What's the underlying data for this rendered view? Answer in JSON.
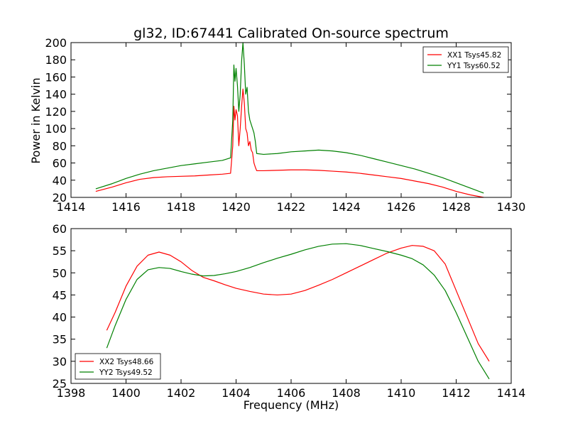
{
  "chart_data": [
    {
      "type": "line",
      "title": "gl32, ID:67441 Calibrated On-source spectrum",
      "xlabel": "",
      "ylabel": "Power in Kelvin",
      "xlim": [
        1414,
        1430
      ],
      "ylim": [
        20,
        200
      ],
      "xticks": [
        1414,
        1416,
        1418,
        1420,
        1422,
        1424,
        1426,
        1428,
        1430
      ],
      "yticks": [
        20,
        40,
        60,
        80,
        100,
        120,
        140,
        160,
        180,
        200
      ],
      "grid": false,
      "legend_position": "top-right",
      "series": [
        {
          "name": "XX1 Tsys45.82",
          "color": "#ff0000",
          "x": [
            1414.9,
            1415.5,
            1416.0,
            1416.5,
            1417.0,
            1417.5,
            1418.0,
            1418.5,
            1419.0,
            1419.5,
            1419.8,
            1419.88,
            1419.92,
            1419.96,
            1420.0,
            1420.05,
            1420.1,
            1420.15,
            1420.2,
            1420.25,
            1420.3,
            1420.35,
            1420.4,
            1420.45,
            1420.5,
            1420.55,
            1420.6,
            1420.65,
            1420.7,
            1420.75,
            1421.0,
            1421.5,
            1422.0,
            1422.5,
            1423.0,
            1423.5,
            1424.0,
            1424.5,
            1425.0,
            1425.5,
            1426.0,
            1426.5,
            1427.0,
            1427.5,
            1428.0,
            1428.5,
            1429.0
          ],
          "y": [
            27,
            32,
            37,
            41,
            43,
            44,
            44.5,
            45,
            46,
            47,
            48,
            80,
            126,
            110,
            122,
            115,
            80,
            100,
            125,
            146,
            130,
            100,
            95,
            80,
            85,
            75,
            72,
            60,
            55,
            51,
            51,
            51.5,
            52,
            52,
            51.5,
            50.5,
            49.5,
            48,
            46,
            44,
            42,
            39,
            36,
            32,
            27,
            23,
            20
          ]
        },
        {
          "name": "YY1 Tsys60.52",
          "color": "#008000",
          "x": [
            1414.9,
            1415.5,
            1416.0,
            1416.5,
            1417.0,
            1417.5,
            1418.0,
            1418.5,
            1419.0,
            1419.5,
            1419.8,
            1419.88,
            1419.92,
            1419.96,
            1420.0,
            1420.05,
            1420.1,
            1420.15,
            1420.2,
            1420.25,
            1420.3,
            1420.35,
            1420.4,
            1420.45,
            1420.5,
            1420.55,
            1420.6,
            1420.65,
            1420.7,
            1420.75,
            1421.0,
            1421.5,
            1422.0,
            1422.5,
            1423.0,
            1423.5,
            1424.0,
            1424.5,
            1425.0,
            1425.5,
            1426.0,
            1426.5,
            1427.0,
            1427.5,
            1428.0,
            1428.5,
            1429.0
          ],
          "y": [
            30,
            36,
            42,
            47,
            51,
            54,
            57,
            59,
            61,
            63,
            66,
            110,
            174,
            155,
            170,
            150,
            120,
            140,
            178,
            200,
            175,
            140,
            148,
            120,
            110,
            105,
            100,
            95,
            85,
            71,
            70,
            71,
            73,
            74,
            75,
            74,
            72,
            69,
            65,
            61,
            57,
            53,
            48,
            43,
            37,
            31,
            25
          ]
        }
      ]
    },
    {
      "type": "line",
      "title": "",
      "xlabel": "Frequency (MHz)",
      "ylabel": "",
      "xlim": [
        1398,
        1414
      ],
      "ylim": [
        25,
        60
      ],
      "xticks": [
        1398,
        1400,
        1402,
        1404,
        1406,
        1408,
        1410,
        1412,
        1414
      ],
      "yticks": [
        25,
        30,
        35,
        40,
        45,
        50,
        55,
        60
      ],
      "grid": false,
      "legend_position": "bottom-left",
      "series": [
        {
          "name": "XX2 Tsys48.66",
          "color": "#ff0000",
          "x": [
            1399.3,
            1399.6,
            1400.0,
            1400.4,
            1400.8,
            1401.2,
            1401.6,
            1402.0,
            1402.4,
            1402.8,
            1403.2,
            1403.6,
            1404.0,
            1404.5,
            1405.0,
            1405.5,
            1406.0,
            1406.5,
            1407.0,
            1407.5,
            1408.0,
            1408.5,
            1409.0,
            1409.5,
            1410.0,
            1410.4,
            1410.8,
            1411.2,
            1411.6,
            1412.0,
            1412.4,
            1412.8,
            1413.2
          ],
          "y": [
            37,
            41,
            47,
            51.5,
            54,
            54.7,
            54,
            52.5,
            50.5,
            49,
            48.2,
            47.3,
            46.5,
            45.8,
            45.2,
            45.0,
            45.2,
            46.0,
            47.2,
            48.5,
            50.0,
            51.5,
            53.0,
            54.5,
            55.6,
            56.2,
            56.0,
            55.0,
            52.0,
            46.0,
            40.0,
            34.0,
            30.0
          ]
        },
        {
          "name": "YY2 Tsys49.52",
          "color": "#008000",
          "x": [
            1399.3,
            1399.6,
            1400.0,
            1400.4,
            1400.8,
            1401.2,
            1401.6,
            1402.0,
            1402.4,
            1402.8,
            1403.2,
            1403.6,
            1404.0,
            1404.5,
            1405.0,
            1405.5,
            1406.0,
            1406.5,
            1407.0,
            1407.5,
            1408.0,
            1408.5,
            1409.0,
            1409.5,
            1410.0,
            1410.4,
            1410.8,
            1411.2,
            1411.6,
            1412.0,
            1412.4,
            1412.8,
            1413.2
          ],
          "y": [
            33,
            38,
            44,
            48.5,
            50.7,
            51.2,
            51.0,
            50.3,
            49.7,
            49.3,
            49.4,
            49.8,
            50.3,
            51.2,
            52.3,
            53.3,
            54.2,
            55.2,
            56.0,
            56.5,
            56.6,
            56.2,
            55.5,
            54.8,
            54.0,
            53.2,
            51.8,
            49.5,
            46.0,
            41.0,
            35.5,
            30.0,
            26.0
          ]
        }
      ]
    }
  ]
}
